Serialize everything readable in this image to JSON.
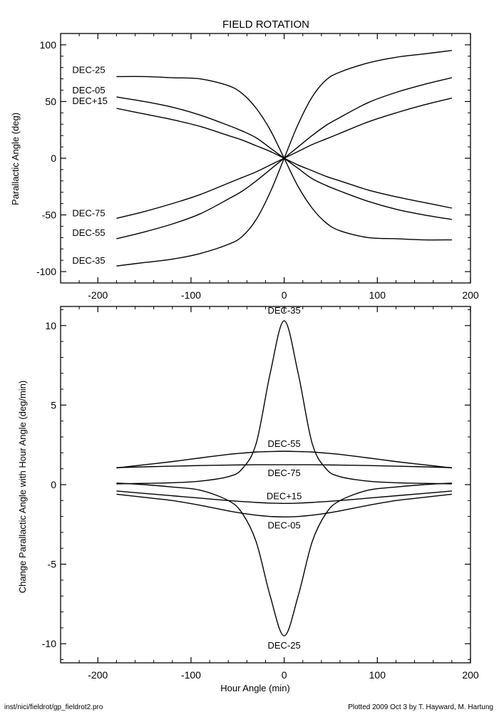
{
  "footer": {
    "left": "inst/nici/fieldrot/gp_fieldrot2.pro",
    "right": "Plotted 2009 Oct  3 by T. Hayward, M. Hartung"
  },
  "chart_data": [
    {
      "type": "line",
      "title": "FIELD ROTATION",
      "xlabel": "",
      "ylabel": "Parallactic Angle (deg)",
      "xlim": [
        -240,
        200
      ],
      "ylim": [
        -110,
        110
      ],
      "xticks": [
        -200,
        -100,
        0,
        100,
        200
      ],
      "yticks": [
        -100,
        -50,
        0,
        50,
        100
      ],
      "x": [
        -180,
        -150,
        -120,
        -90,
        -60,
        -45,
        -30,
        -15,
        0,
        15,
        30,
        45,
        60,
        90,
        120,
        150,
        180
      ],
      "series": [
        {
          "name": "DEC-25",
          "values": [
            72,
            72,
            71,
            70,
            64,
            57,
            44,
            25,
            0,
            -25,
            -44,
            -57,
            -64,
            -70,
            -71,
            -72,
            -72
          ]
        },
        {
          "name": "DEC-05",
          "values": [
            54,
            50,
            45,
            38,
            29,
            24,
            18,
            9,
            0,
            -9,
            -18,
            -24,
            -29,
            -38,
            -45,
            -50,
            -54
          ]
        },
        {
          "name": "DEC+15",
          "values": [
            44,
            39,
            34,
            28,
            20,
            16,
            11,
            6,
            0,
            -6,
            -11,
            -16,
            -20,
            -28,
            -34,
            -39,
            -44
          ]
        },
        {
          "name": "DEC-75",
          "values": [
            -53,
            -47,
            -40,
            -32,
            -22,
            -17,
            -12,
            -6,
            0,
            6,
            12,
            17,
            22,
            32,
            40,
            47,
            53
          ]
        },
        {
          "name": "DEC-55",
          "values": [
            -71,
            -65,
            -58,
            -49,
            -36,
            -29,
            -20,
            -10,
            0,
            10,
            20,
            29,
            36,
            49,
            58,
            65,
            71
          ]
        },
        {
          "name": "DEC-35",
          "values": [
            -95,
            -92,
            -89,
            -84,
            -76,
            -69,
            -54,
            -30,
            0,
            30,
            54,
            69,
            76,
            84,
            89,
            92,
            95
          ]
        }
      ]
    },
    {
      "type": "line",
      "title": "",
      "xlabel": "Hour Angle (min)",
      "ylabel": "Change Parallactic Angle with Hour Angle (deg/min)",
      "xlim": [
        -240,
        200
      ],
      "ylim": [
        -11.2,
        11.2
      ],
      "xticks": [
        -200,
        -100,
        0,
        100,
        200
      ],
      "yticks": [
        -10,
        -5,
        0,
        5,
        10
      ],
      "x": [
        -180,
        -150,
        -120,
        -90,
        -60,
        -45,
        -30,
        -15,
        0,
        15,
        30,
        45,
        60,
        90,
        120,
        150,
        180
      ],
      "series": [
        {
          "name": "DEC-35",
          "values": [
            0.05,
            0.08,
            0.12,
            0.22,
            0.5,
            1.0,
            2.6,
            7.0,
            10.3,
            7.0,
            2.6,
            1.0,
            0.5,
            0.22,
            0.12,
            0.08,
            0.05
          ]
        },
        {
          "name": "DEC-55",
          "values": [
            1.05,
            1.25,
            1.45,
            1.68,
            1.9,
            1.98,
            2.05,
            2.08,
            2.1,
            2.08,
            2.05,
            1.98,
            1.9,
            1.68,
            1.45,
            1.25,
            1.05
          ]
        },
        {
          "name": "DEC-75",
          "values": [
            1.07,
            1.12,
            1.16,
            1.2,
            1.23,
            1.24,
            1.25,
            1.25,
            1.25,
            1.25,
            1.25,
            1.24,
            1.23,
            1.2,
            1.16,
            1.12,
            1.07
          ]
        },
        {
          "name": "DEC+15",
          "values": [
            -0.4,
            -0.55,
            -0.7,
            -0.85,
            -1.0,
            -1.06,
            -1.12,
            -1.16,
            -1.18,
            -1.16,
            -1.12,
            -1.06,
            -1.0,
            -0.85,
            -0.7,
            -0.55,
            -0.4
          ]
        },
        {
          "name": "DEC-05",
          "values": [
            -0.6,
            -0.8,
            -1.0,
            -1.3,
            -1.65,
            -1.8,
            -1.92,
            -2.0,
            -2.03,
            -2.0,
            -1.92,
            -1.8,
            -1.65,
            -1.3,
            -1.0,
            -0.8,
            -0.6
          ]
        },
        {
          "name": "DEC-25",
          "values": [
            0.1,
            0.0,
            -0.15,
            -0.35,
            -1.0,
            -1.8,
            -3.6,
            -7.0,
            -9.5,
            -7.0,
            -3.6,
            -1.8,
            -1.0,
            -0.35,
            -0.15,
            0.0,
            0.1
          ]
        }
      ]
    }
  ]
}
